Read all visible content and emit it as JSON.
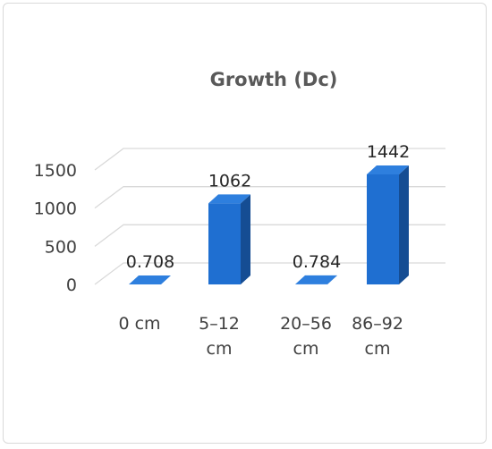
{
  "chart_data": {
    "type": "bar",
    "title": "Growth (Dc)",
    "categories": [
      [
        "0 cm"
      ],
      [
        "5–12",
        "cm"
      ],
      [
        "20–56",
        "cm"
      ],
      [
        "86–92",
        "cm"
      ]
    ],
    "values": [
      0.708,
      1062,
      0.784,
      1442
    ],
    "data_labels": [
      "0.708",
      "1062",
      "0.784",
      "1442"
    ],
    "yticks": [
      "0",
      "500",
      "1000",
      "1500"
    ],
    "ylim": [
      0,
      1500
    ],
    "grid": true,
    "style": "3d-column",
    "colors": {
      "front": "#1f6fd1",
      "side": "#154d93",
      "top": "#2e7fde"
    }
  }
}
